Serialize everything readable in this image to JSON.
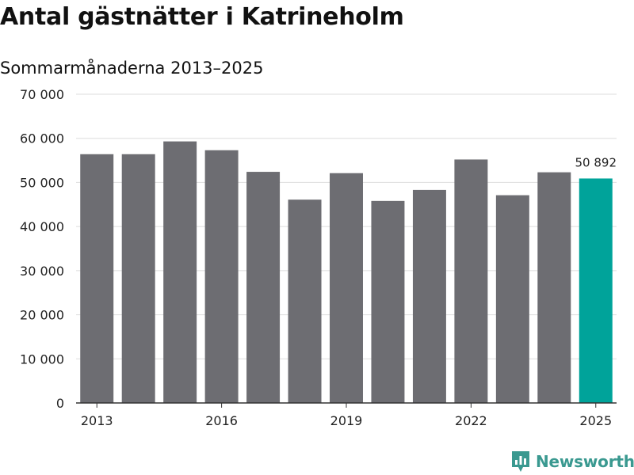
{
  "header": {
    "title": "Antal gästnätter i Katrineholm",
    "subtitle": "Sommarmånaderna 2013–2025"
  },
  "chart_data": {
    "type": "bar",
    "categories": [
      "2013",
      "2014",
      "2015",
      "2016",
      "2017",
      "2018",
      "2019",
      "2020",
      "2021",
      "2022",
      "2023",
      "2024",
      "2025"
    ],
    "values": [
      56400,
      56400,
      59300,
      57300,
      52400,
      46100,
      52100,
      45800,
      48300,
      55200,
      47100,
      52300,
      50892
    ],
    "x_tick_labels": [
      "2013",
      "2016",
      "2019",
      "2022",
      "2025"
    ],
    "y_ticks": [
      0,
      10000,
      20000,
      30000,
      40000,
      50000,
      60000,
      70000
    ],
    "y_tick_labels": [
      "0",
      "10 000",
      "20 000",
      "30 000",
      "40 000",
      "50 000",
      "60 000",
      "70 000"
    ],
    "ylim": [
      0,
      70000
    ],
    "annotation": {
      "category": "2025",
      "label": "50 892"
    },
    "grid": "horizontal",
    "colors": {
      "bar": "#6d6d72",
      "highlight": "#00a39a",
      "grid": "#dddddd",
      "axis": "#333333"
    }
  },
  "branding": {
    "logo_text": "Newsworthy",
    "logo_color": "#3a9990",
    "logo_icon": "bar-chart-pin-icon"
  }
}
